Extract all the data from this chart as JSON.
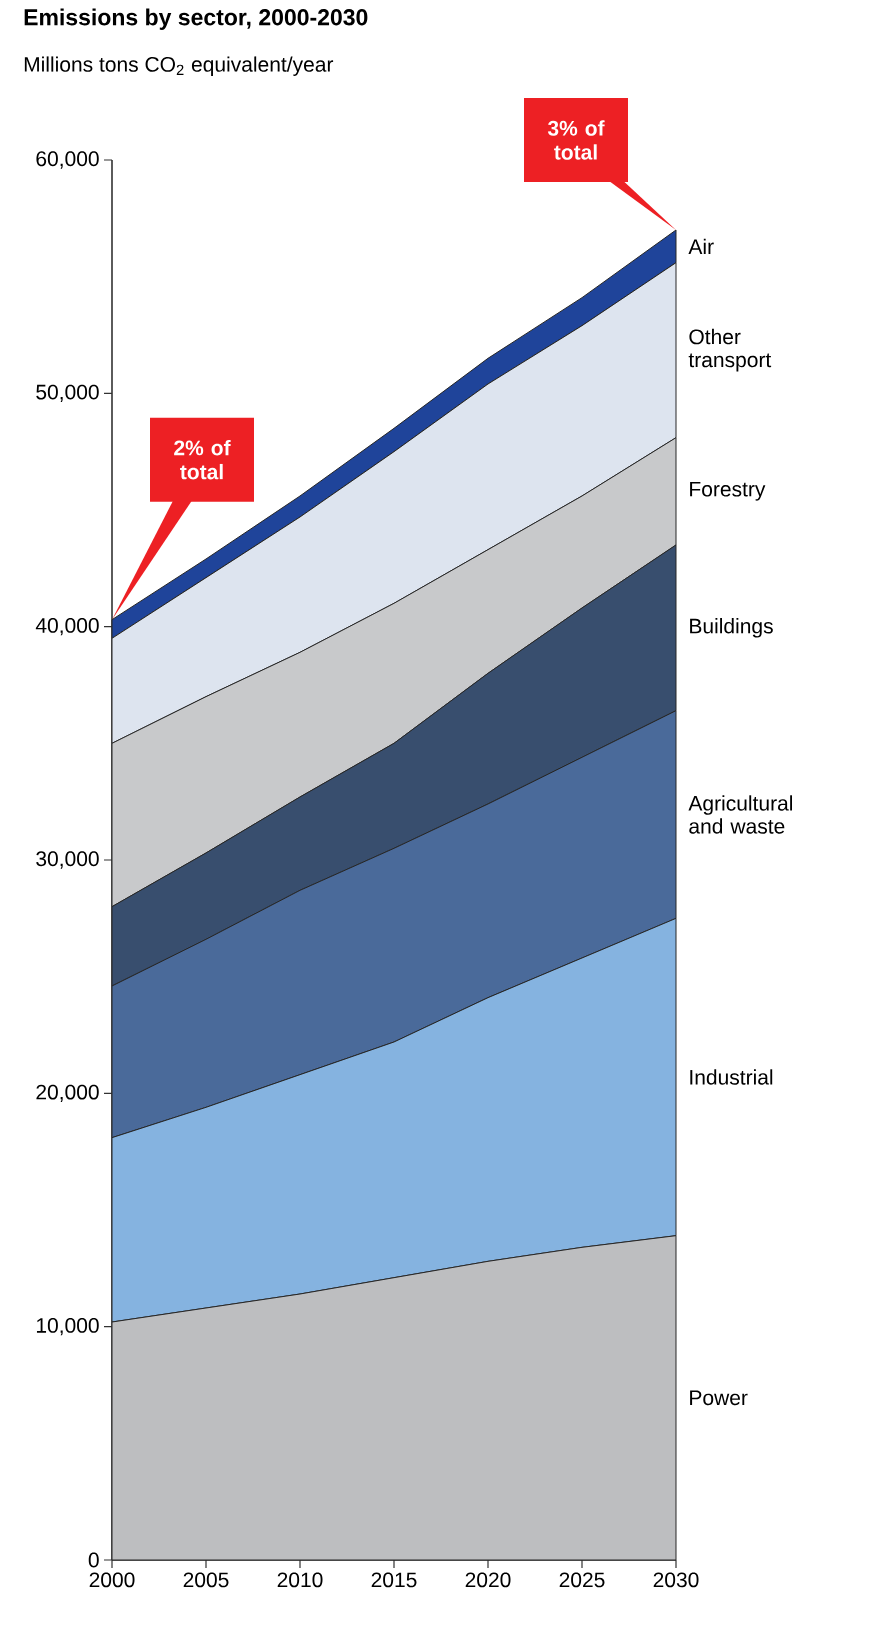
{
  "chart_data": {
    "type": "area",
    "stacked": true,
    "title": "**Emissions by sector, 2000-2030**",
    "ylabel": "Millions tons CO$_{2}$ equivalent/year",
    "x": [
      2000,
      2005,
      2010,
      2015,
      2020,
      2025,
      2030
    ],
    "xlim": [
      2000,
      2030
    ],
    "xticks": [
      2000,
      2005,
      2010,
      2015,
      2020,
      2025,
      2030
    ],
    "ylim": [
      0,
      60000
    ],
    "yticks": [
      0,
      {
        "value": 10000,
        "label": "10,000"
      },
      {
        "value": 20000,
        "label": "20,000"
      },
      {
        "value": 30000,
        "label": "30,000"
      },
      {
        "value": 40000,
        "label": "40,000"
      },
      {
        "value": 50000,
        "label": "50,000"
      },
      {
        "value": 60000,
        "label": "60,000"
      }
    ],
    "series": [
      {
        "name": "Power",
        "color": "#bdbec0",
        "values": [
          10200,
          10800,
          11400,
          12100,
          12800,
          13400,
          13900
        ]
      },
      {
        "name": "Industrial",
        "color": "#85b3e0",
        "values": [
          7900,
          8600,
          9400,
          10100,
          11300,
          12400,
          13600
        ]
      },
      {
        "name": "Agricultural and waste",
        "color": "#4a6a9a",
        "values": [
          6500,
          7200,
          7900,
          8300,
          8300,
          8600,
          8900
        ]
      },
      {
        "name": "Buildings",
        "color": "#384e6e",
        "values": [
          3400,
          3700,
          4000,
          4500,
          5600,
          6400,
          7100
        ]
      },
      {
        "name": "Forestry",
        "color": "#c8c9cb",
        "values": [
          7000,
          6700,
          6200,
          6000,
          5300,
          4800,
          4600
        ]
      },
      {
        "name": "Other transport",
        "color": "#dde4ef",
        "values": [
          4500,
          5100,
          5800,
          6500,
          7100,
          7300,
          7500
        ]
      },
      {
        "name": "Air",
        "color": "#1f449a",
        "values": [
          800,
          800,
          900,
          1000,
          1100,
          1200,
          1400
        ]
      }
    ],
    "annotations": [
      "**2% of total**",
      "**3% of total**"
    ],
    "legend": false,
    "grid": false
  }
}
